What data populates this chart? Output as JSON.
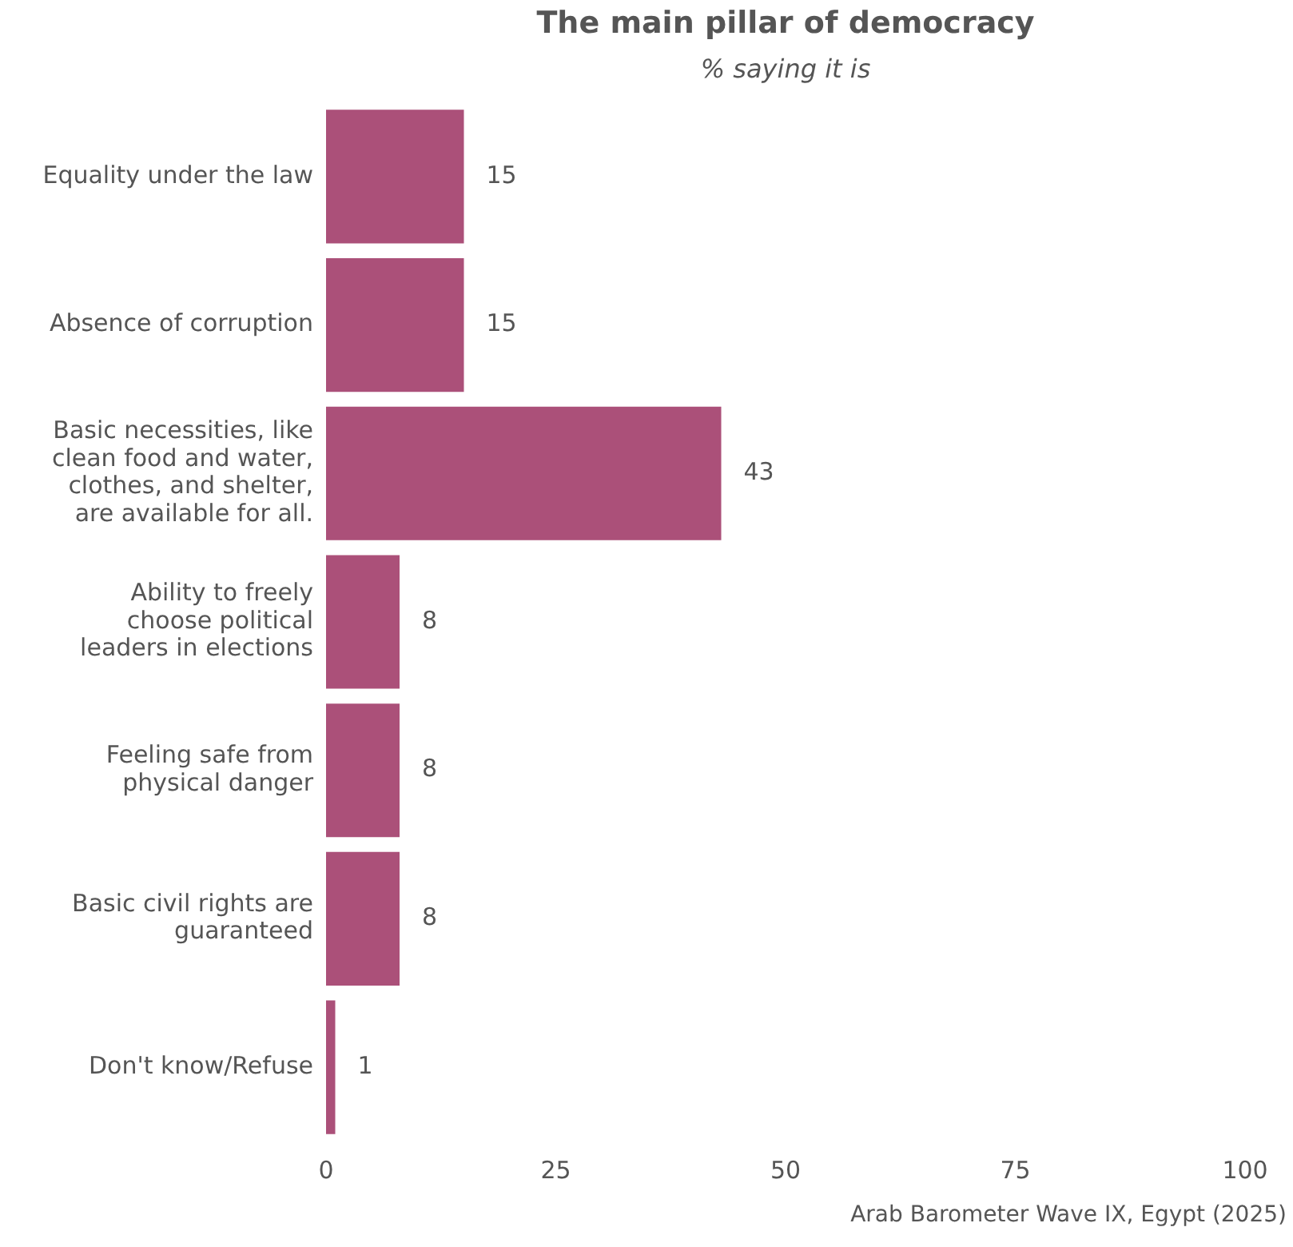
{
  "chart_data": {
    "type": "bar",
    "orientation": "horizontal",
    "title": "The main pillar of democracy",
    "subtitle": "% saying it is",
    "categories": [
      "Equality under the law",
      "Absence of corruption",
      "Basic necessities, like clean food and water, clothes, and shelter, are available for all.",
      "Ability to freely choose political leaders in elections",
      "Feeling safe from physical danger",
      "Basic civil rights are guaranteed",
      "Don't know/Refuse"
    ],
    "values": [
      15,
      15,
      43,
      8,
      8,
      8,
      1
    ],
    "color": "#ab5079",
    "xlim": [
      0,
      100
    ],
    "xticks": [
      0,
      25,
      50,
      75,
      100
    ],
    "grid": false,
    "legend": false,
    "data_labels": true,
    "annotations": [
      "Arab Barometer Wave IX, Egypt (2025)"
    ]
  }
}
